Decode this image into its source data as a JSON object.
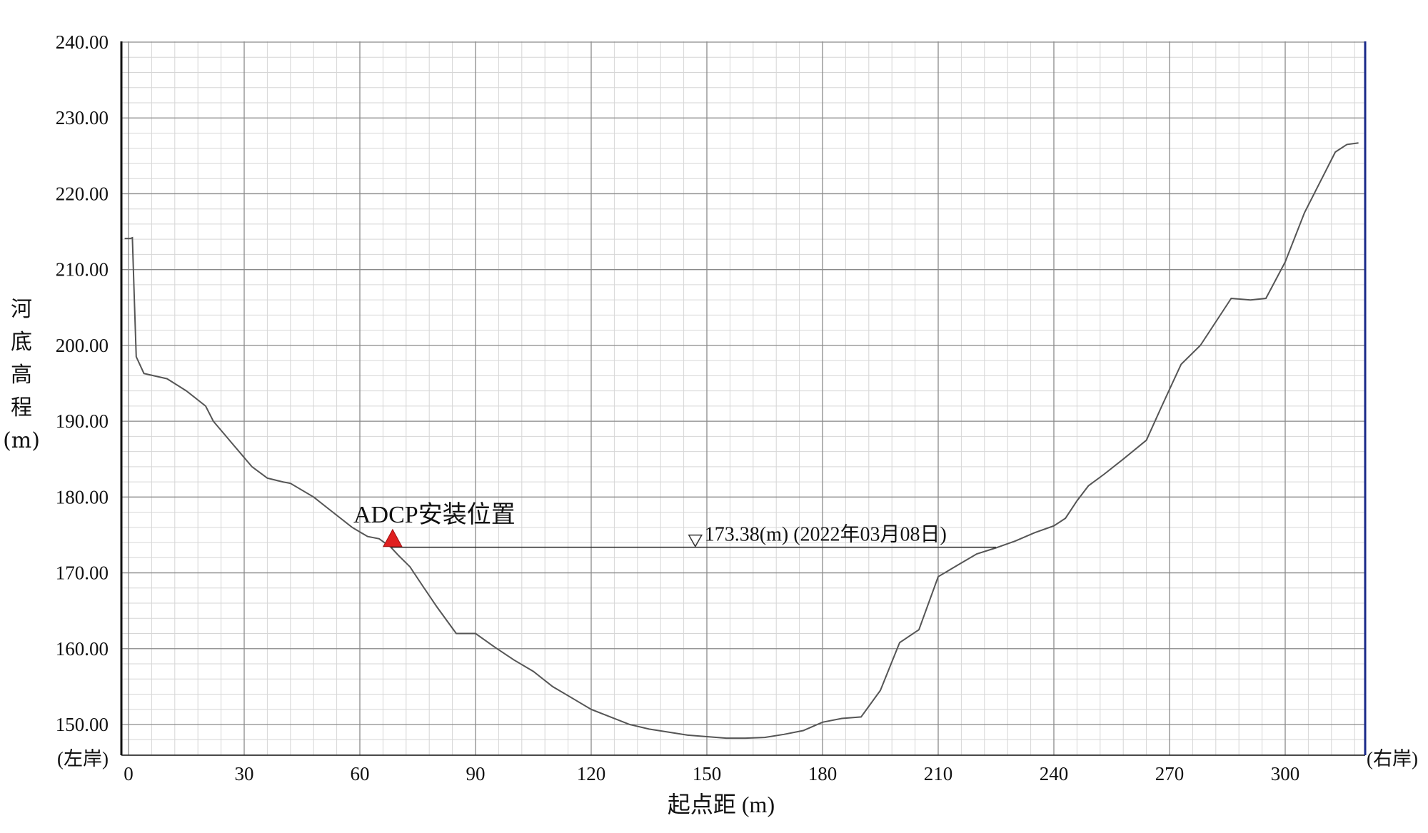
{
  "chart_data": {
    "type": "line",
    "title": "",
    "xlabel": "起点距 (m)",
    "ylabel": [
      "河",
      "底",
      "高",
      "程",
      "(m)"
    ],
    "xlim": [
      -2,
      320
    ],
    "ylim": [
      146,
      240
    ],
    "x_ticks": [
      0,
      30,
      60,
      90,
      120,
      150,
      180,
      210,
      240,
      270,
      300
    ],
    "y_ticks": [
      "150.00",
      "160.00",
      "170.00",
      "180.00",
      "190.00",
      "200.00",
      "210.00",
      "220.00",
      "230.00",
      "240.00"
    ],
    "y_tick_values": [
      150,
      160,
      170,
      180,
      190,
      200,
      210,
      220,
      230,
      240
    ],
    "grid": true,
    "left_bank_label": "(左岸)",
    "right_bank_label": "(右岸)",
    "series": [
      {
        "color": "#555555",
        "x": [
          -1,
          0.5,
          1,
          1.5,
          2,
          4,
          10,
          15,
          20,
          22,
          27,
          32,
          36,
          40,
          42,
          48,
          53,
          58,
          62,
          65,
          68,
          70,
          73,
          76,
          80,
          85,
          90,
          95,
          100,
          105,
          110,
          115,
          120,
          125,
          130,
          135,
          140,
          145,
          150,
          155,
          160,
          165,
          170,
          175,
          180,
          185,
          190,
          195,
          200,
          205,
          210,
          215,
          220,
          225,
          230,
          235,
          240,
          243,
          246,
          249,
          253,
          258,
          264,
          268,
          273,
          278,
          286,
          291,
          295,
          300,
          305,
          310,
          313,
          316,
          319
        ],
        "y": [
          214.1,
          214.1,
          214.2,
          206.2,
          198.5,
          196.3,
          195.6,
          194,
          192,
          190,
          187,
          184,
          182.5,
          182,
          181.8,
          180,
          178,
          176,
          174.8,
          174.5,
          173.4,
          172.3,
          170.8,
          168.5,
          165.5,
          162,
          162,
          160.2,
          158.5,
          157,
          155,
          153.5,
          152,
          151,
          150,
          149.4,
          149,
          148.6,
          148.4,
          148.2,
          148.2,
          148.3,
          148.7,
          149.2,
          150.3,
          150.8,
          151,
          154.5,
          160.8,
          162.5,
          169.5,
          171,
          172.5,
          173.3,
          174.2,
          175.3,
          176.2,
          177.2,
          179.5,
          181.5,
          183,
          185,
          187.5,
          192,
          197.5,
          200,
          206.2,
          206,
          206.2,
          211,
          217.5,
          222.5,
          225.5,
          226.5,
          226.7
        ]
      }
    ],
    "water_level": {
      "value": 173.38,
      "x_start": 68,
      "x_end": 225,
      "marker_x": 147,
      "label": "173.38(m) (2022年03月08日)"
    },
    "adcp": {
      "x": 68.5,
      "y": 174.5,
      "label": "ADCP安装位置",
      "color": "#e02020"
    }
  }
}
